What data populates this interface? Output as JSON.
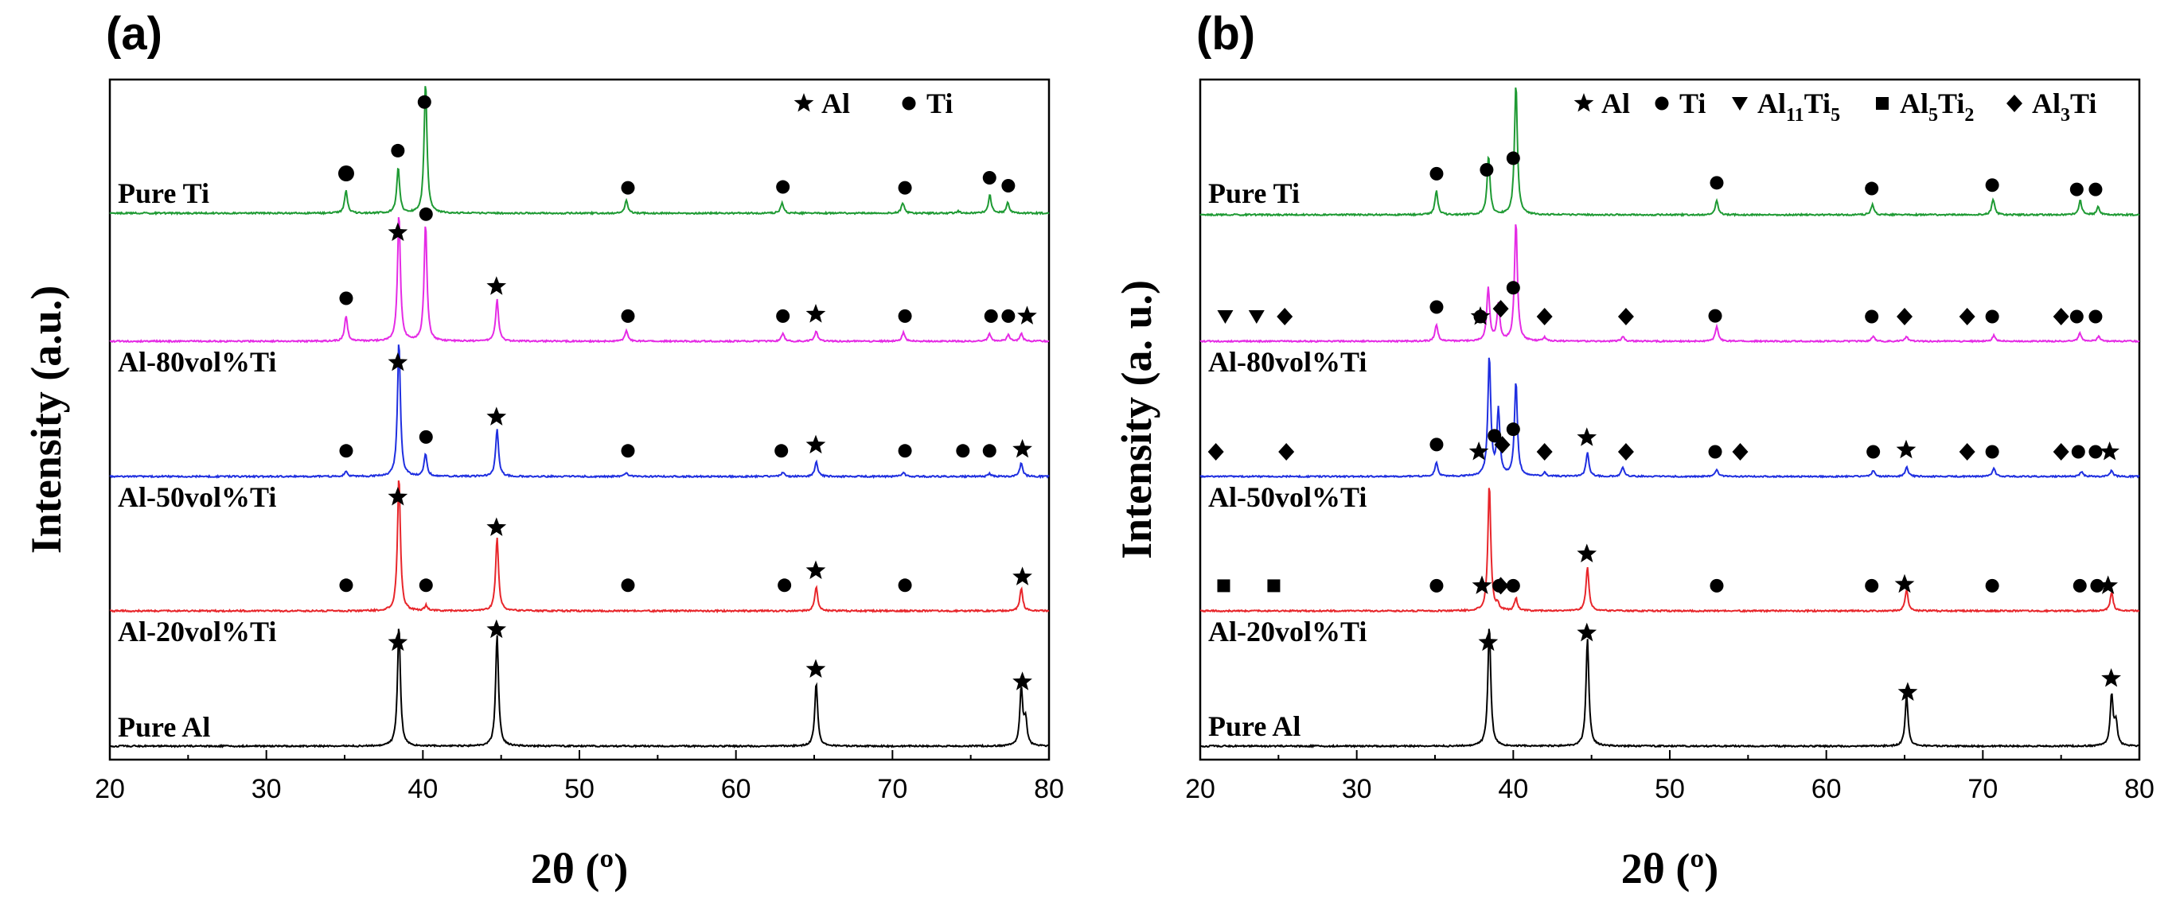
{
  "figure": {
    "panel_a_label": "(a)",
    "panel_b_label": "(b)"
  },
  "chart_data": [
    {
      "type": "line",
      "panel": "(a)",
      "xlabel": "2θ (º)",
      "ylabel": "Intensity (a.u.)",
      "xlim": [
        20,
        80
      ],
      "xticks": [
        "20",
        "30",
        "40",
        "50",
        "60",
        "70",
        "80"
      ],
      "legend": [
        {
          "marker": "star",
          "label": "Al"
        },
        {
          "marker": "circle",
          "label": "Ti"
        }
      ],
      "series": [
        {
          "name": "Pure Al",
          "color": "#000000",
          "label_position": "above",
          "peaks": [
            [
              38.47,
              0.95
            ],
            [
              44.74,
              0.88
            ],
            [
              65.13,
              0.5
            ],
            [
              78.23,
              0.45
            ],
            [
              78.5,
              0.2
            ]
          ],
          "markers": [
            [
              "star",
              38.4
            ],
            [
              "star",
              44.7
            ],
            [
              "star",
              65.1
            ],
            [
              "star",
              78.3
            ]
          ]
        },
        {
          "name": "Al-20vol%Ti",
          "color": "#e8262b",
          "label_position": "below",
          "peaks": [
            [
              38.47,
              1.0
            ],
            [
              44.74,
              0.55
            ],
            [
              65.13,
              0.18
            ],
            [
              78.23,
              0.17
            ],
            [
              40.2,
              0.04
            ]
          ],
          "markers": [
            [
              "circle",
              35.1
            ],
            [
              "star",
              38.4
            ],
            [
              "circle",
              40.2
            ],
            [
              "star",
              44.7
            ],
            [
              "circle",
              53.1
            ],
            [
              "circle",
              63.1
            ],
            [
              "star",
              65.1
            ],
            [
              "circle",
              70.8
            ],
            [
              "star",
              78.3
            ]
          ]
        },
        {
          "name": "Al-50vol%Ti",
          "color": "#1f2fe0",
          "label_position": "below",
          "peaks": [
            [
              38.47,
              1.0
            ],
            [
              44.74,
              0.35
            ],
            [
              40.17,
              0.17
            ],
            [
              65.13,
              0.11
            ],
            [
              78.23,
              0.1
            ],
            [
              35.09,
              0.04
            ],
            [
              53.0,
              0.03
            ],
            [
              63.0,
              0.03
            ],
            [
              70.7,
              0.03
            ],
            [
              76.2,
              0.02
            ]
          ],
          "markers": [
            [
              "circle",
              35.1
            ],
            [
              "star",
              38.4
            ],
            [
              "circle",
              40.2
            ],
            [
              "star",
              44.7
            ],
            [
              "circle",
              53.1
            ],
            [
              "circle",
              62.9
            ],
            [
              "star",
              65.1
            ],
            [
              "circle",
              70.8
            ],
            [
              "circle",
              74.5
            ],
            [
              "circle",
              76.2
            ],
            [
              "star",
              78.3
            ]
          ]
        },
        {
          "name": "Al-80vol%Ti",
          "color": "#e52be5",
          "label_position": "below",
          "peaks": [
            [
              38.47,
              1.0
            ],
            [
              40.17,
              0.92
            ],
            [
              44.74,
              0.33
            ],
            [
              35.09,
              0.2
            ],
            [
              53.0,
              0.08
            ],
            [
              63.0,
              0.06
            ],
            [
              65.13,
              0.08
            ],
            [
              70.7,
              0.07
            ],
            [
              76.2,
              0.06
            ],
            [
              77.4,
              0.05
            ],
            [
              78.23,
              0.06
            ]
          ],
          "markers": [
            [
              "circle",
              35.1
            ],
            [
              "star",
              38.4
            ],
            [
              "circle",
              40.2
            ],
            [
              "star",
              44.7
            ],
            [
              "circle",
              53.1
            ],
            [
              "circle",
              63.0
            ],
            [
              "star",
              65.1
            ],
            [
              "circle",
              70.8
            ],
            [
              "circle",
              76.3
            ],
            [
              "circle",
              77.4
            ],
            [
              "star",
              78.6
            ]
          ]
        },
        {
          "name": "Pure Ti",
          "color": "#1e9a33",
          "label_position": "above",
          "peaks": [
            [
              35.09,
              0.17
            ],
            [
              38.42,
              0.35
            ],
            [
              40.17,
              1.0
            ],
            [
              53.0,
              0.1
            ],
            [
              62.95,
              0.08
            ],
            [
              70.66,
              0.08
            ],
            [
              76.22,
              0.14
            ],
            [
              77.37,
              0.08
            ],
            [
              74.2,
              0.015
            ]
          ],
          "markers": [
            [
              "circle-lg",
              35.1
            ],
            [
              "circle",
              38.4
            ],
            [
              "circle",
              40.1
            ],
            [
              "circle",
              53.1
            ],
            [
              "circle",
              63.0
            ],
            [
              "circle",
              70.8
            ],
            [
              "circle",
              76.2
            ],
            [
              "circle",
              77.4
            ]
          ]
        }
      ]
    },
    {
      "type": "line",
      "panel": "(b)",
      "xlabel": "2θ (º)",
      "ylabel": "Intensity (a. u.)",
      "xlim": [
        20,
        80
      ],
      "xticks": [
        "20",
        "30",
        "40",
        "50",
        "60",
        "70",
        "80"
      ],
      "legend": [
        {
          "marker": "star",
          "label": "Al"
        },
        {
          "marker": "circle",
          "label": "Ti"
        },
        {
          "marker": "triangle-down",
          "label": "Al",
          "sub1": "11",
          "mid": "Ti",
          "sub2": "5"
        },
        {
          "marker": "square",
          "label": "Al",
          "sub1": "5",
          "mid": "Ti",
          "sub2": "2"
        },
        {
          "marker": "diamond",
          "label": "Al",
          "sub1": "",
          "mid": "",
          "sub2": "3",
          "tail": "Ti"
        }
      ],
      "series": [
        {
          "name": "Pure Al",
          "color": "#000000",
          "label_position": "above",
          "peaks": [
            [
              38.47,
              0.95
            ],
            [
              44.74,
              0.85
            ],
            [
              65.13,
              0.4
            ],
            [
              78.23,
              0.4
            ],
            [
              78.5,
              0.18
            ]
          ],
          "markers": [
            [
              "star",
              38.4
            ],
            [
              "star",
              44.7
            ],
            [
              "star",
              65.2
            ],
            [
              "star",
              78.2
            ]
          ]
        },
        {
          "name": "Al-20vol%Ti",
          "color": "#e8262b",
          "label_position": "below",
          "peaks": [
            [
              38.47,
              1.0
            ],
            [
              44.74,
              0.35
            ],
            [
              65.13,
              0.17
            ],
            [
              78.23,
              0.15
            ],
            [
              40.17,
              0.1
            ],
            [
              39.0,
              0.04
            ]
          ],
          "markers": [
            [
              "square",
              21.5
            ],
            [
              "square",
              24.7
            ],
            [
              "circle",
              35.1
            ],
            [
              "star",
              38.0
            ],
            [
              "circle",
              39.1
            ],
            [
              "diamond",
              39.2
            ],
            [
              "circle",
              40.0
            ],
            [
              "star",
              44.7
            ],
            [
              "circle",
              53.0
            ],
            [
              "circle",
              62.9
            ],
            [
              "star",
              65.0
            ],
            [
              "circle",
              70.6
            ],
            [
              "circle",
              76.2
            ],
            [
              "circle",
              77.3
            ],
            [
              "star",
              78.0
            ]
          ]
        },
        {
          "name": "Al-50vol%Ti",
          "color": "#1f2fe0",
          "label_position": "below",
          "peaks": [
            [
              38.47,
              1.0
            ],
            [
              39.05,
              0.55
            ],
            [
              40.17,
              0.8
            ],
            [
              44.74,
              0.2
            ],
            [
              35.09,
              0.12
            ],
            [
              47.0,
              0.08
            ],
            [
              53.0,
              0.06
            ],
            [
              63.0,
              0.05
            ],
            [
              65.13,
              0.08
            ],
            [
              70.7,
              0.07
            ],
            [
              76.3,
              0.04
            ],
            [
              78.23,
              0.05
            ],
            [
              42.0,
              0.03
            ]
          ],
          "markers": [
            [
              "diamond",
              21.0
            ],
            [
              "diamond",
              25.5
            ],
            [
              "circle",
              35.1
            ],
            [
              "star",
              37.8
            ],
            [
              "circle",
              38.8
            ],
            [
              "diamond",
              39.3
            ],
            [
              "circle",
              40.0
            ],
            [
              "diamond",
              42.0
            ],
            [
              "star",
              44.7
            ],
            [
              "diamond",
              47.2
            ],
            [
              "circle",
              52.9
            ],
            [
              "diamond",
              54.5
            ],
            [
              "circle",
              63.0
            ],
            [
              "star",
              65.1
            ],
            [
              "diamond",
              69.0
            ],
            [
              "circle",
              70.6
            ],
            [
              "diamond",
              75.0
            ],
            [
              "circle",
              76.1
            ],
            [
              "circle",
              77.2
            ],
            [
              "star",
              78.1
            ]
          ]
        },
        {
          "name": "Al-80vol%Ti",
          "color": "#e52be5",
          "label_position": "below",
          "peaks": [
            [
              38.4,
              0.45
            ],
            [
              39.05,
              0.3
            ],
            [
              40.17,
              1.0
            ],
            [
              35.09,
              0.14
            ],
            [
              53.0,
              0.12
            ],
            [
              76.2,
              0.07
            ],
            [
              47.0,
              0.04
            ],
            [
              63.0,
              0.04
            ],
            [
              65.13,
              0.04
            ],
            [
              70.7,
              0.05
            ],
            [
              77.4,
              0.04
            ],
            [
              42.0,
              0.03
            ]
          ],
          "markers": [
            [
              "triangle-down",
              21.6
            ],
            [
              "triangle-down",
              23.6
            ],
            [
              "diamond",
              25.4
            ],
            [
              "circle",
              35.1
            ],
            [
              "circle",
              37.9
            ],
            [
              "star",
              37.9
            ],
            [
              "diamond",
              39.2
            ],
            [
              "circle",
              40.0
            ],
            [
              "diamond",
              42.0
            ],
            [
              "diamond",
              47.2
            ],
            [
              "circle",
              52.9
            ],
            [
              "circle",
              62.9
            ],
            [
              "diamond",
              65.0
            ],
            [
              "diamond",
              69.0
            ],
            [
              "circle",
              70.6
            ],
            [
              "diamond",
              75.0
            ],
            [
              "circle",
              76.0
            ],
            [
              "circle",
              77.2
            ]
          ]
        },
        {
          "name": "Pure Ti",
          "color": "#1e9a33",
          "label_position": "above",
          "peaks": [
            [
              35.09,
              0.18
            ],
            [
              38.42,
              0.45
            ],
            [
              40.17,
              1.0
            ],
            [
              53.0,
              0.11
            ],
            [
              62.95,
              0.08
            ],
            [
              70.66,
              0.12
            ],
            [
              76.22,
              0.11
            ],
            [
              77.37,
              0.06
            ]
          ],
          "markers": [
            [
              "circle",
              35.1
            ],
            [
              "circle",
              38.3
            ],
            [
              "circle",
              40.0
            ],
            [
              "circle",
              53.0
            ],
            [
              "circle",
              62.9
            ],
            [
              "circle",
              70.6
            ],
            [
              "circle",
              76.0
            ],
            [
              "circle",
              77.2
            ]
          ]
        }
      ]
    }
  ]
}
